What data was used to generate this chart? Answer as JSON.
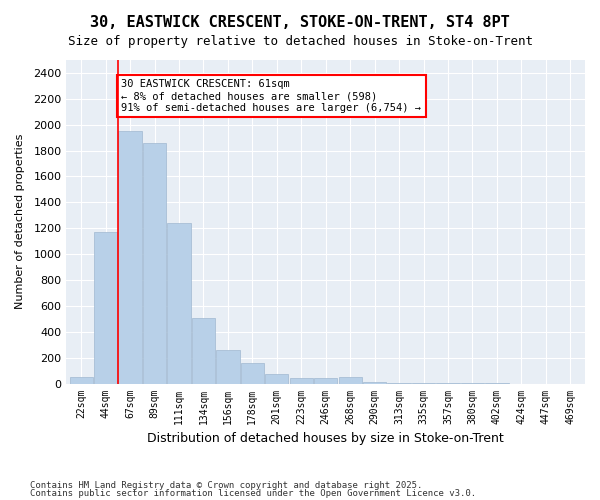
{
  "title1": "30, EASTWICK CRESCENT, STOKE-ON-TRENT, ST4 8PT",
  "title2": "Size of property relative to detached houses in Stoke-on-Trent",
  "xlabel": "Distribution of detached houses by size in Stoke-on-Trent",
  "ylabel": "Number of detached properties",
  "bar_color": "#b8d0e8",
  "bar_edge_color": "#a0b8d0",
  "background_color": "#e8eef5",
  "categories": [
    "22sqm",
    "44sqm",
    "67sqm",
    "89sqm",
    "111sqm",
    "134sqm",
    "156sqm",
    "178sqm",
    "201sqm",
    "223sqm",
    "246sqm",
    "268sqm",
    "290sqm",
    "313sqm",
    "335sqm",
    "357sqm",
    "380sqm",
    "402sqm",
    "424sqm",
    "447sqm",
    "469sqm"
  ],
  "values": [
    50,
    1170,
    1950,
    1860,
    1240,
    510,
    260,
    160,
    70,
    40,
    40,
    50,
    10,
    5,
    2,
    2,
    1,
    1,
    0,
    0,
    0
  ],
  "ylim": [
    0,
    2500
  ],
  "yticks": [
    0,
    200,
    400,
    600,
    800,
    1000,
    1200,
    1400,
    1600,
    1800,
    2000,
    2200,
    2400
  ],
  "red_line_x": 1.5,
  "annotation_title": "30 EASTWICK CRESCENT: 61sqm",
  "annotation_line1": "← 8% of detached houses are smaller (598)",
  "annotation_line2": "91% of semi-detached houses are larger (6,754) →",
  "footnote1": "Contains HM Land Registry data © Crown copyright and database right 2025.",
  "footnote2": "Contains public sector information licensed under the Open Government Licence v3.0."
}
